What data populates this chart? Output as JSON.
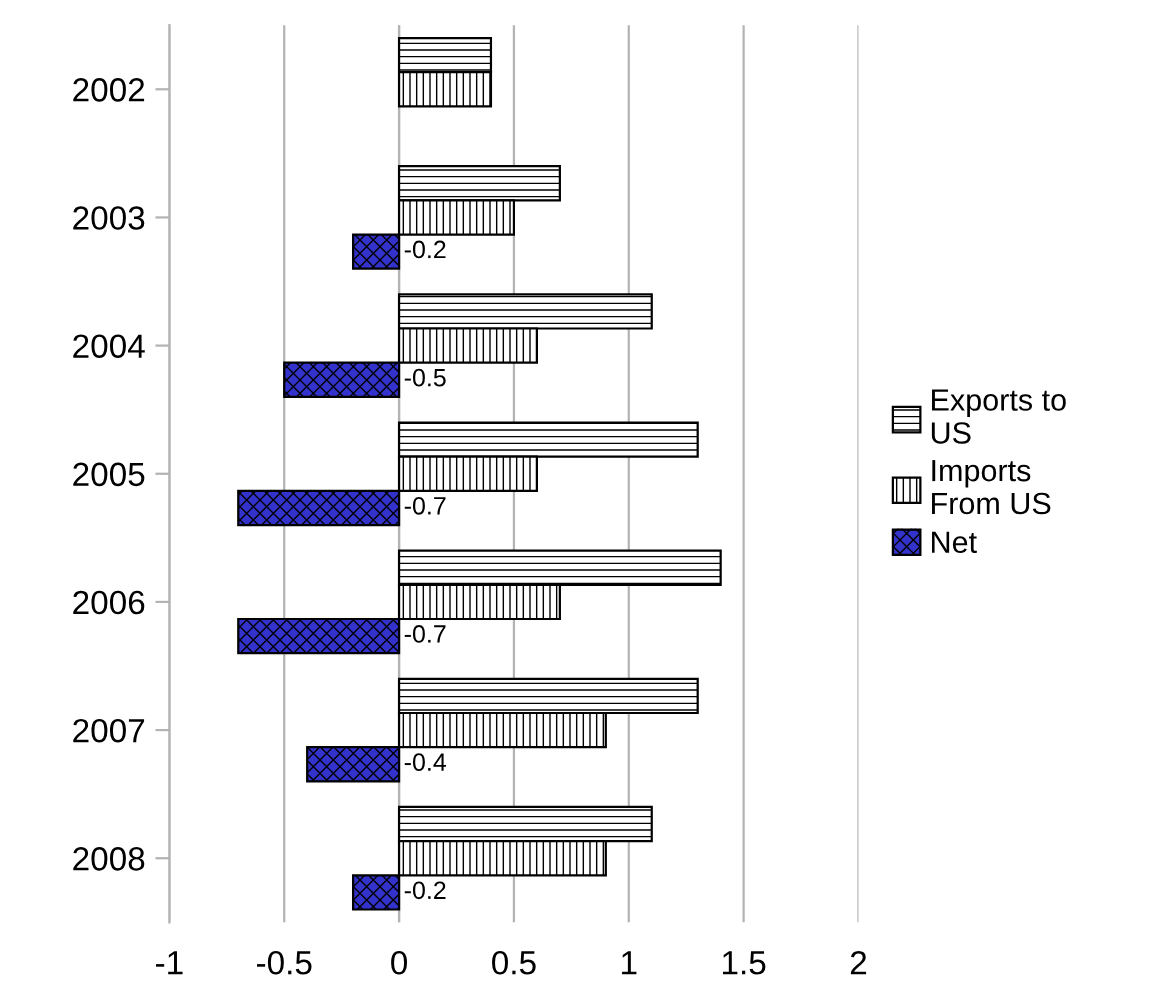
{
  "chart_data": {
    "type": "bar",
    "orientation": "horizontal",
    "categories": [
      "2002",
      "2003",
      "2004",
      "2005",
      "2006",
      "2007",
      "2008"
    ],
    "series": [
      {
        "name": "Exports to US",
        "color": "#ffffff",
        "values": [
          0.4,
          0.7,
          1.1,
          1.3,
          1.4,
          1.3,
          1.1
        ]
      },
      {
        "name": "Imports From US",
        "color": "#ffffff",
        "values": [
          0.4,
          0.5,
          0.6,
          0.6,
          0.7,
          0.9,
          0.9
        ]
      },
      {
        "name": "Net",
        "color": "#3333cc",
        "values": [
          null,
          -0.2,
          -0.5,
          -0.7,
          -0.7,
          -0.4,
          -0.2
        ],
        "value_labels": [
          null,
          "-0.2",
          "-0.5",
          "-0.7",
          "-0.7",
          "-0.4",
          "-0.2"
        ]
      }
    ],
    "xlim": [
      -1,
      2
    ],
    "xticks": [
      -1,
      -0.5,
      0,
      0.5,
      1,
      1.5,
      2
    ],
    "grid": "x",
    "legend": "right"
  }
}
